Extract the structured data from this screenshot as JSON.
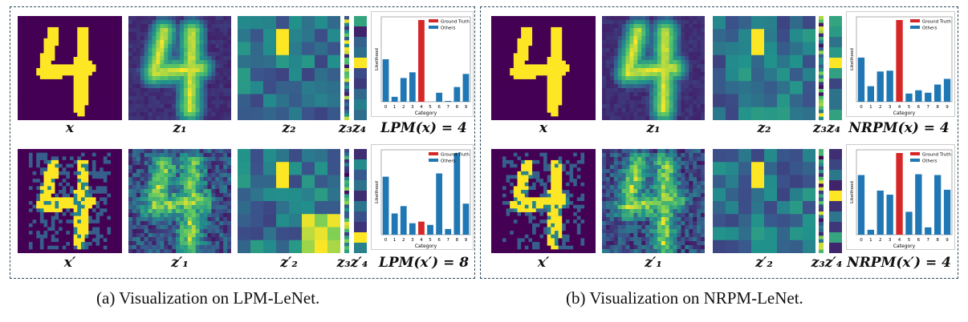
{
  "panels": [
    {
      "caption": "(a)  Visualization on LPM-LeNet.",
      "rows": [
        {
          "labels": {
            "x": "x",
            "z1": "z₁",
            "z2": "z₂",
            "z34": "z₃z₄",
            "pred": "LPM(x) = 4"
          }
        },
        {
          "labels": {
            "x": "x′",
            "z1": "z′₁",
            "z2": "z′₂",
            "z34": "z₃z′₄",
            "pred": "LPM(x′) = 8"
          }
        }
      ]
    },
    {
      "caption": "(b)  Visualization on NRPM-LeNet.",
      "rows": [
        {
          "labels": {
            "x": "x",
            "z1": "z₁",
            "z2": "z₂",
            "z34": "z₃z₄",
            "pred": "NRPM(x) = 4"
          }
        },
        {
          "labels": {
            "x": "x′",
            "z1": "z′₁",
            "z2": "z′₂",
            "z34": "z₃z′₄",
            "pred": "NRPM(x′) = 4"
          }
        }
      ]
    }
  ],
  "colors": {
    "ground_truth": "#d62728",
    "others": "#1f77b4",
    "border": "#2f4a5a",
    "viridis_low": "#440154",
    "viridis_high": "#fde725"
  },
  "chart_data": [
    {
      "type": "bar",
      "xlabel": "Category",
      "ylabel": "Likelihood",
      "categories": [
        "0",
        "1",
        "2",
        "3",
        "4",
        "5",
        "6",
        "7",
        "8",
        "9"
      ],
      "ground_truth_index": 4,
      "legend": [
        "Ground Truth",
        "Others"
      ],
      "legend_position": "top-right",
      "values": [
        0.52,
        0.06,
        0.29,
        0.36,
        1.0,
        0.0,
        0.11,
        0.01,
        0.18,
        0.34
      ]
    },
    {
      "type": "bar",
      "xlabel": "Category",
      "ylabel": "Likelihood",
      "categories": [
        "0",
        "1",
        "2",
        "3",
        "4",
        "5",
        "6",
        "7",
        "8",
        "9"
      ],
      "ground_truth_index": 4,
      "legend": [
        "Ground Truth",
        "Others"
      ],
      "legend_position": "top-right",
      "values": [
        0.71,
        0.26,
        0.35,
        0.14,
        0.16,
        0.12,
        0.75,
        0.07,
        1.0,
        0.38
      ]
    },
    {
      "type": "bar",
      "xlabel": "Category",
      "ylabel": "Likelihood",
      "categories": [
        "0",
        "1",
        "2",
        "3",
        "4",
        "5",
        "6",
        "7",
        "8",
        "9"
      ],
      "ground_truth_index": 4,
      "legend": [
        "Ground Truth",
        "Others"
      ],
      "legend_position": "top-right",
      "values": [
        0.54,
        0.19,
        0.37,
        0.38,
        1.0,
        0.1,
        0.14,
        0.11,
        0.21,
        0.28
      ]
    },
    {
      "type": "bar",
      "xlabel": "Category",
      "ylabel": "Likelihood",
      "categories": [
        "0",
        "1",
        "2",
        "3",
        "4",
        "5",
        "6",
        "7",
        "8",
        "9"
      ],
      "ground_truth_index": 4,
      "legend": [
        "Ground Truth",
        "Others"
      ],
      "legend_position": "top-right",
      "values": [
        0.73,
        0.06,
        0.54,
        0.49,
        1.0,
        0.28,
        0.74,
        0.09,
        0.73,
        0.55
      ]
    }
  ]
}
